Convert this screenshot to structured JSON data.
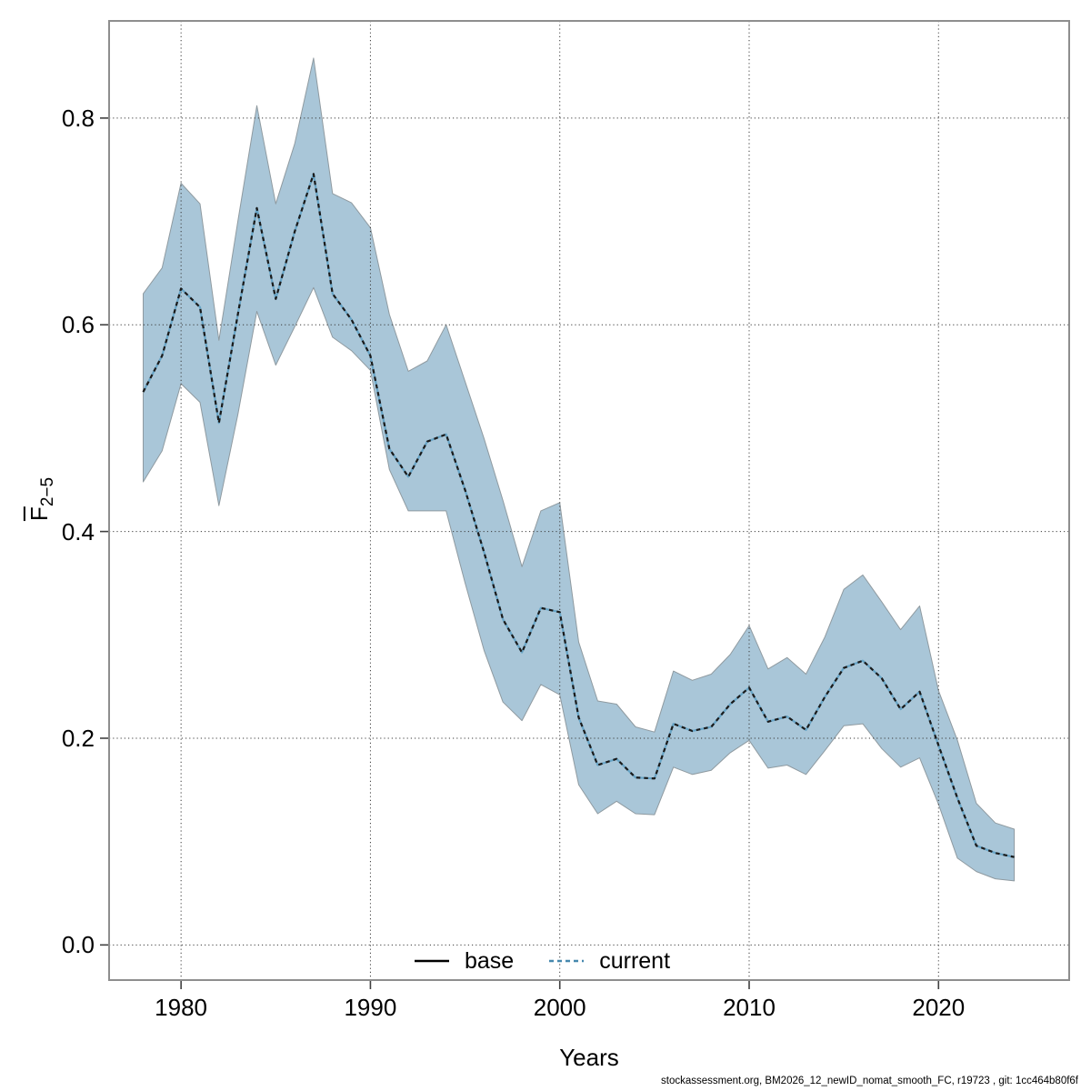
{
  "footer": {
    "text": "stockassessment.org, BM2026_12_newID_nomat_smooth_FC, r19723 , git: 1cc464b80f6f"
  },
  "chart_data": {
    "type": "line",
    "title": "",
    "xlabel": "Years",
    "ylabel": "F-bar ages 2-5",
    "ylabel_base": "F",
    "ylabel_subscript": "2−5",
    "grid": "dotted, both axes",
    "legend_position": "bottom-center inside plot",
    "x_ticks": [
      1980,
      1990,
      2000,
      2010,
      2020
    ],
    "y_ticks": [
      "0.0",
      "0.2",
      "0.4",
      "0.6",
      "0.8"
    ],
    "x_domain": [
      1976.2,
      2026.9
    ],
    "y_domain": [
      -0.034,
      0.894
    ],
    "x": [
      1978,
      1979,
      1980,
      1981,
      1982,
      1983,
      1984,
      1985,
      1986,
      1987,
      1988,
      1989,
      1990,
      1991,
      1992,
      1993,
      1994,
      1995,
      1996,
      1997,
      1998,
      1999,
      2000,
      2001,
      2002,
      2003,
      2004,
      2005,
      2006,
      2007,
      2008,
      2009,
      2010,
      2011,
      2012,
      2013,
      2014,
      2015,
      2016,
      2017,
      2018,
      2019,
      2020,
      2021,
      2022,
      2023,
      2024
    ],
    "series": [
      {
        "name": "current",
        "line_style": "dotted (black dashes over light-blue line)",
        "values": [
          0.535,
          0.57,
          0.635,
          0.617,
          0.505,
          0.61,
          0.713,
          0.625,
          0.69,
          0.746,
          0.63,
          0.605,
          0.57,
          0.48,
          0.453,
          0.487,
          0.494,
          0.44,
          0.38,
          0.315,
          0.283,
          0.326,
          0.322,
          0.22,
          0.174,
          0.18,
          0.162,
          0.161,
          0.214,
          0.207,
          0.211,
          0.233,
          0.249,
          0.216,
          0.221,
          0.208,
          0.24,
          0.268,
          0.275,
          0.258,
          0.228,
          0.245,
          0.193,
          0.142,
          0.096,
          0.089,
          0.085
        ]
      }
    ],
    "band": {
      "name": "current 95% confidence band",
      "upper": [
        0.63,
        0.655,
        0.737,
        0.717,
        0.585,
        0.7,
        0.812,
        0.717,
        0.775,
        0.858,
        0.727,
        0.718,
        0.694,
        0.61,
        0.555,
        0.565,
        0.6,
        0.545,
        0.49,
        0.43,
        0.366,
        0.42,
        0.428,
        0.293,
        0.236,
        0.233,
        0.211,
        0.206,
        0.265,
        0.256,
        0.262,
        0.281,
        0.309,
        0.267,
        0.278,
        0.262,
        0.298,
        0.344,
        0.358,
        0.332,
        0.305,
        0.328,
        0.246,
        0.198,
        0.137,
        0.118,
        0.112
      ],
      "lower": [
        0.448,
        0.478,
        0.543,
        0.525,
        0.425,
        0.513,
        0.613,
        0.561,
        0.598,
        0.636,
        0.588,
        0.575,
        0.556,
        0.46,
        0.42,
        0.42,
        0.42,
        0.35,
        0.285,
        0.235,
        0.217,
        0.252,
        0.242,
        0.155,
        0.127,
        0.139,
        0.127,
        0.126,
        0.172,
        0.165,
        0.169,
        0.186,
        0.198,
        0.171,
        0.174,
        0.165,
        0.188,
        0.212,
        0.214,
        0.19,
        0.172,
        0.181,
        0.136,
        0.084,
        0.071,
        0.064,
        0.062
      ]
    },
    "legend": [
      {
        "label": "base",
        "style": "solid",
        "color": "#000000"
      },
      {
        "label": "current",
        "style": "dashed",
        "color": "#4688ae"
      }
    ],
    "colors": {
      "band_fill": "#a9c6d8",
      "band_edge": "#8f9aa0",
      "line_under": "#67a4c6",
      "line_dash": "#1a1a1a",
      "frame": "#8e8e8e",
      "grid": "#3a3a3a",
      "tick": "#404040"
    }
  }
}
